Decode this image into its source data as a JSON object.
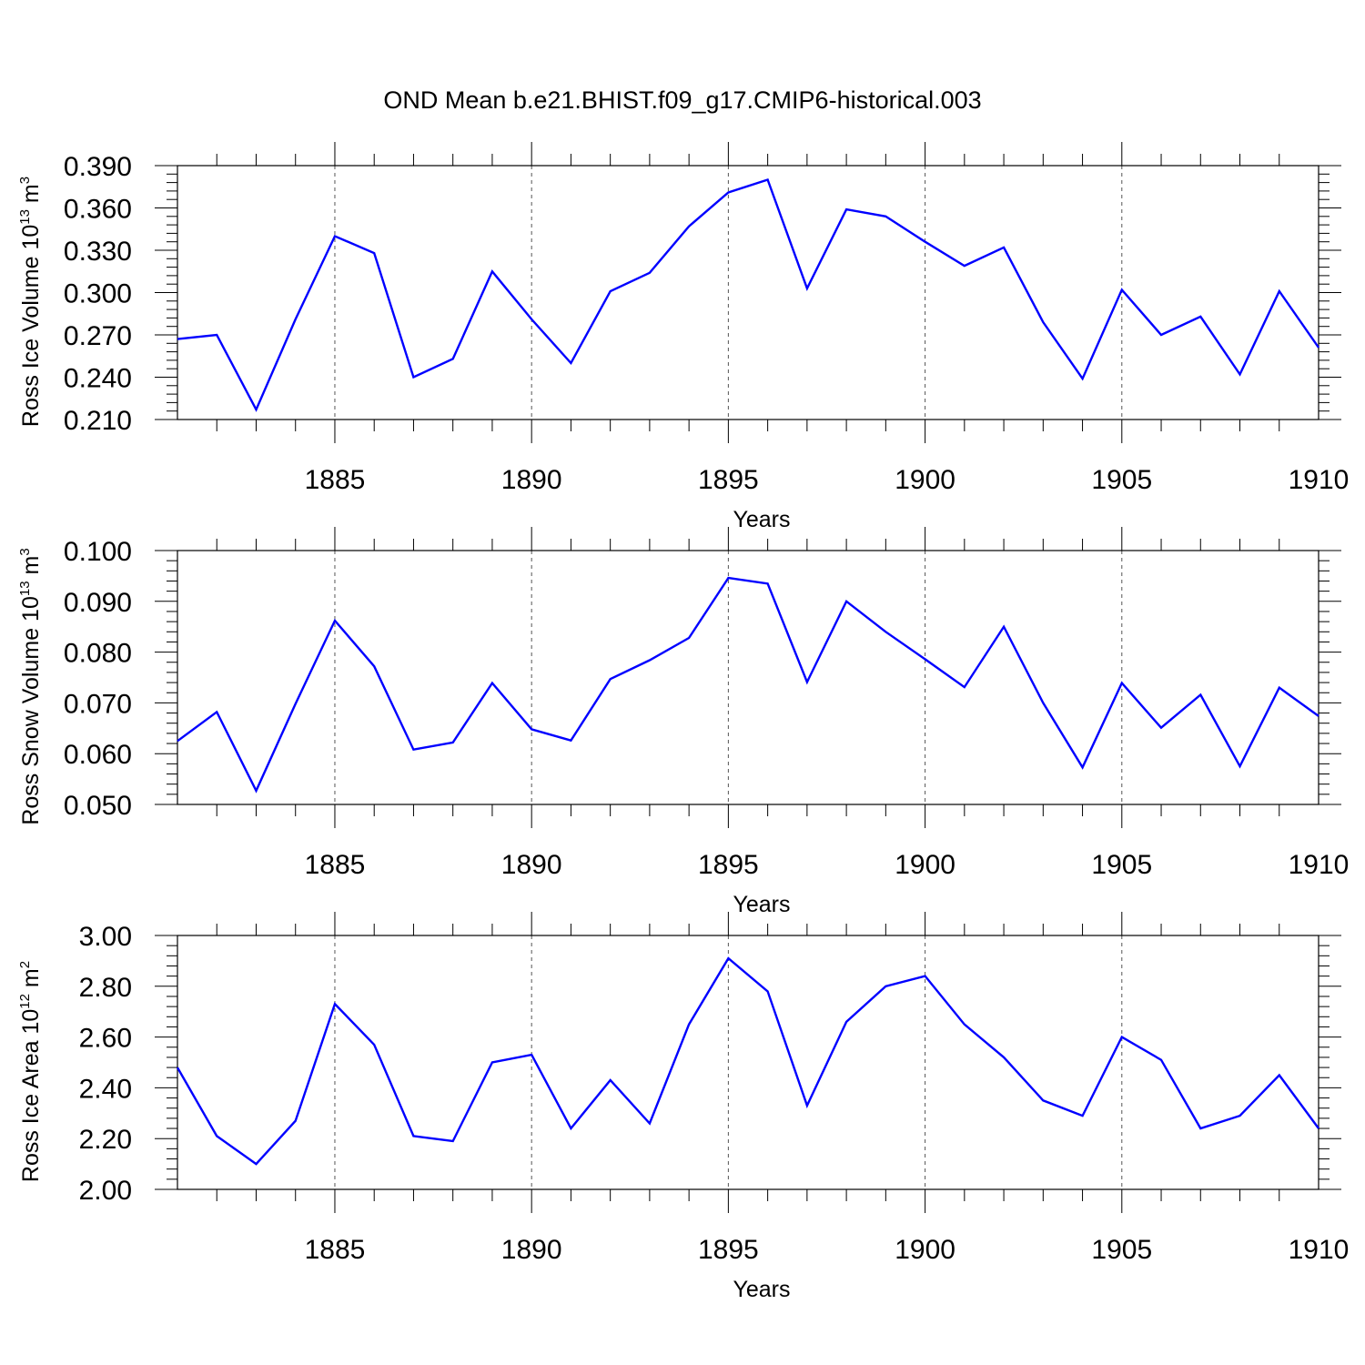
{
  "title": "OND Mean b.e21.BHIST.f09_g17.CMIP6-historical.003",
  "colors": {
    "series": "#0000ff",
    "axes": "#000000",
    "grid": "#555555"
  },
  "chart_data": [
    {
      "type": "line",
      "ylabel": {
        "text": "Ross Ice Volume 10",
        "sup": "13",
        "unit": " m",
        "unit_sup": "3"
      },
      "xlabel": "Years",
      "xlim": [
        1881,
        1910
      ],
      "ylim": [
        0.21,
        0.39
      ],
      "grid": "dashed vertical at major x ticks",
      "x_ticks": [
        1885,
        1890,
        1895,
        1900,
        1905,
        1910
      ],
      "x_tick_labels": [
        "1885",
        "1890",
        "1895",
        "1900",
        "1905",
        "1910"
      ],
      "y_ticks": [
        0.21,
        0.24,
        0.27,
        0.3,
        0.33,
        0.36,
        0.39
      ],
      "y_tick_labels": [
        "0.210",
        "0.240",
        "0.270",
        "0.300",
        "0.330",
        "0.360",
        "0.390"
      ],
      "x": [
        1881,
        1882,
        1883,
        1884,
        1885,
        1886,
        1887,
        1888,
        1889,
        1890,
        1891,
        1892,
        1893,
        1894,
        1895,
        1896,
        1897,
        1898,
        1899,
        1900,
        1901,
        1902,
        1903,
        1904,
        1905,
        1906,
        1907,
        1908,
        1909,
        1910
      ],
      "values": [
        0.267,
        0.27,
        0.217,
        0.281,
        0.34,
        0.328,
        0.24,
        0.253,
        0.315,
        0.281,
        0.25,
        0.301,
        0.314,
        0.347,
        0.371,
        0.38,
        0.303,
        0.359,
        0.354,
        0.336,
        0.319,
        0.332,
        0.279,
        0.239,
        0.302,
        0.27,
        0.283,
        0.242,
        0.301,
        0.261
      ]
    },
    {
      "type": "line",
      "ylabel": {
        "text": "Ross Snow Volume 10",
        "sup": "13",
        "unit": " m",
        "unit_sup": "3"
      },
      "xlabel": "Years",
      "xlim": [
        1881,
        1910
      ],
      "ylim": [
        0.05,
        0.1
      ],
      "grid": "dashed vertical at major x ticks",
      "x_ticks": [
        1885,
        1890,
        1895,
        1900,
        1905,
        1910
      ],
      "x_tick_labels": [
        "1885",
        "1890",
        "1895",
        "1900",
        "1905",
        "1910"
      ],
      "y_ticks": [
        0.05,
        0.06,
        0.07,
        0.08,
        0.09,
        0.1
      ],
      "y_tick_labels": [
        "0.050",
        "0.060",
        "0.070",
        "0.080",
        "0.090",
        "0.100"
      ],
      "x": [
        1881,
        1882,
        1883,
        1884,
        1885,
        1886,
        1887,
        1888,
        1889,
        1890,
        1891,
        1892,
        1893,
        1894,
        1895,
        1896,
        1897,
        1898,
        1899,
        1900,
        1901,
        1902,
        1903,
        1904,
        1905,
        1906,
        1907,
        1908,
        1909,
        1910
      ],
      "values": [
        0.0625,
        0.0682,
        0.0527,
        0.0698,
        0.0862,
        0.0772,
        0.0608,
        0.0622,
        0.0739,
        0.0648,
        0.0626,
        0.0747,
        0.0784,
        0.0828,
        0.0946,
        0.0935,
        0.0741,
        0.09,
        0.084,
        0.0786,
        0.0731,
        0.085,
        0.07,
        0.0573,
        0.0739,
        0.0651,
        0.0716,
        0.0575,
        0.073,
        0.0674
      ]
    },
    {
      "type": "line",
      "ylabel": {
        "text": "Ross Ice Area 10",
        "sup": "12",
        "unit": " m",
        "unit_sup": "2"
      },
      "xlabel": "Years",
      "xlim": [
        1881,
        1910
      ],
      "ylim": [
        2.0,
        3.0
      ],
      "grid": "dashed vertical at major x ticks",
      "x_ticks": [
        1885,
        1890,
        1895,
        1900,
        1905,
        1910
      ],
      "x_tick_labels": [
        "1885",
        "1890",
        "1895",
        "1900",
        "1905",
        "1910"
      ],
      "y_ticks": [
        2.0,
        2.2,
        2.4,
        2.6,
        2.8,
        3.0
      ],
      "y_tick_labels": [
        "2.00",
        "2.20",
        "2.40",
        "2.60",
        "2.80",
        "3.00"
      ],
      "x": [
        1881,
        1882,
        1883,
        1884,
        1885,
        1886,
        1887,
        1888,
        1889,
        1890,
        1891,
        1892,
        1893,
        1894,
        1895,
        1896,
        1897,
        1898,
        1899,
        1900,
        1901,
        1902,
        1903,
        1904,
        1905,
        1906,
        1907,
        1908,
        1909,
        1910
      ],
      "values": [
        2.48,
        2.21,
        2.1,
        2.27,
        2.73,
        2.57,
        2.21,
        2.19,
        2.5,
        2.53,
        2.24,
        2.43,
        2.26,
        2.65,
        2.91,
        2.78,
        2.33,
        2.66,
        2.8,
        2.84,
        2.65,
        2.52,
        2.35,
        2.29,
        2.6,
        2.51,
        2.24,
        2.29,
        2.45,
        2.24
      ]
    }
  ]
}
